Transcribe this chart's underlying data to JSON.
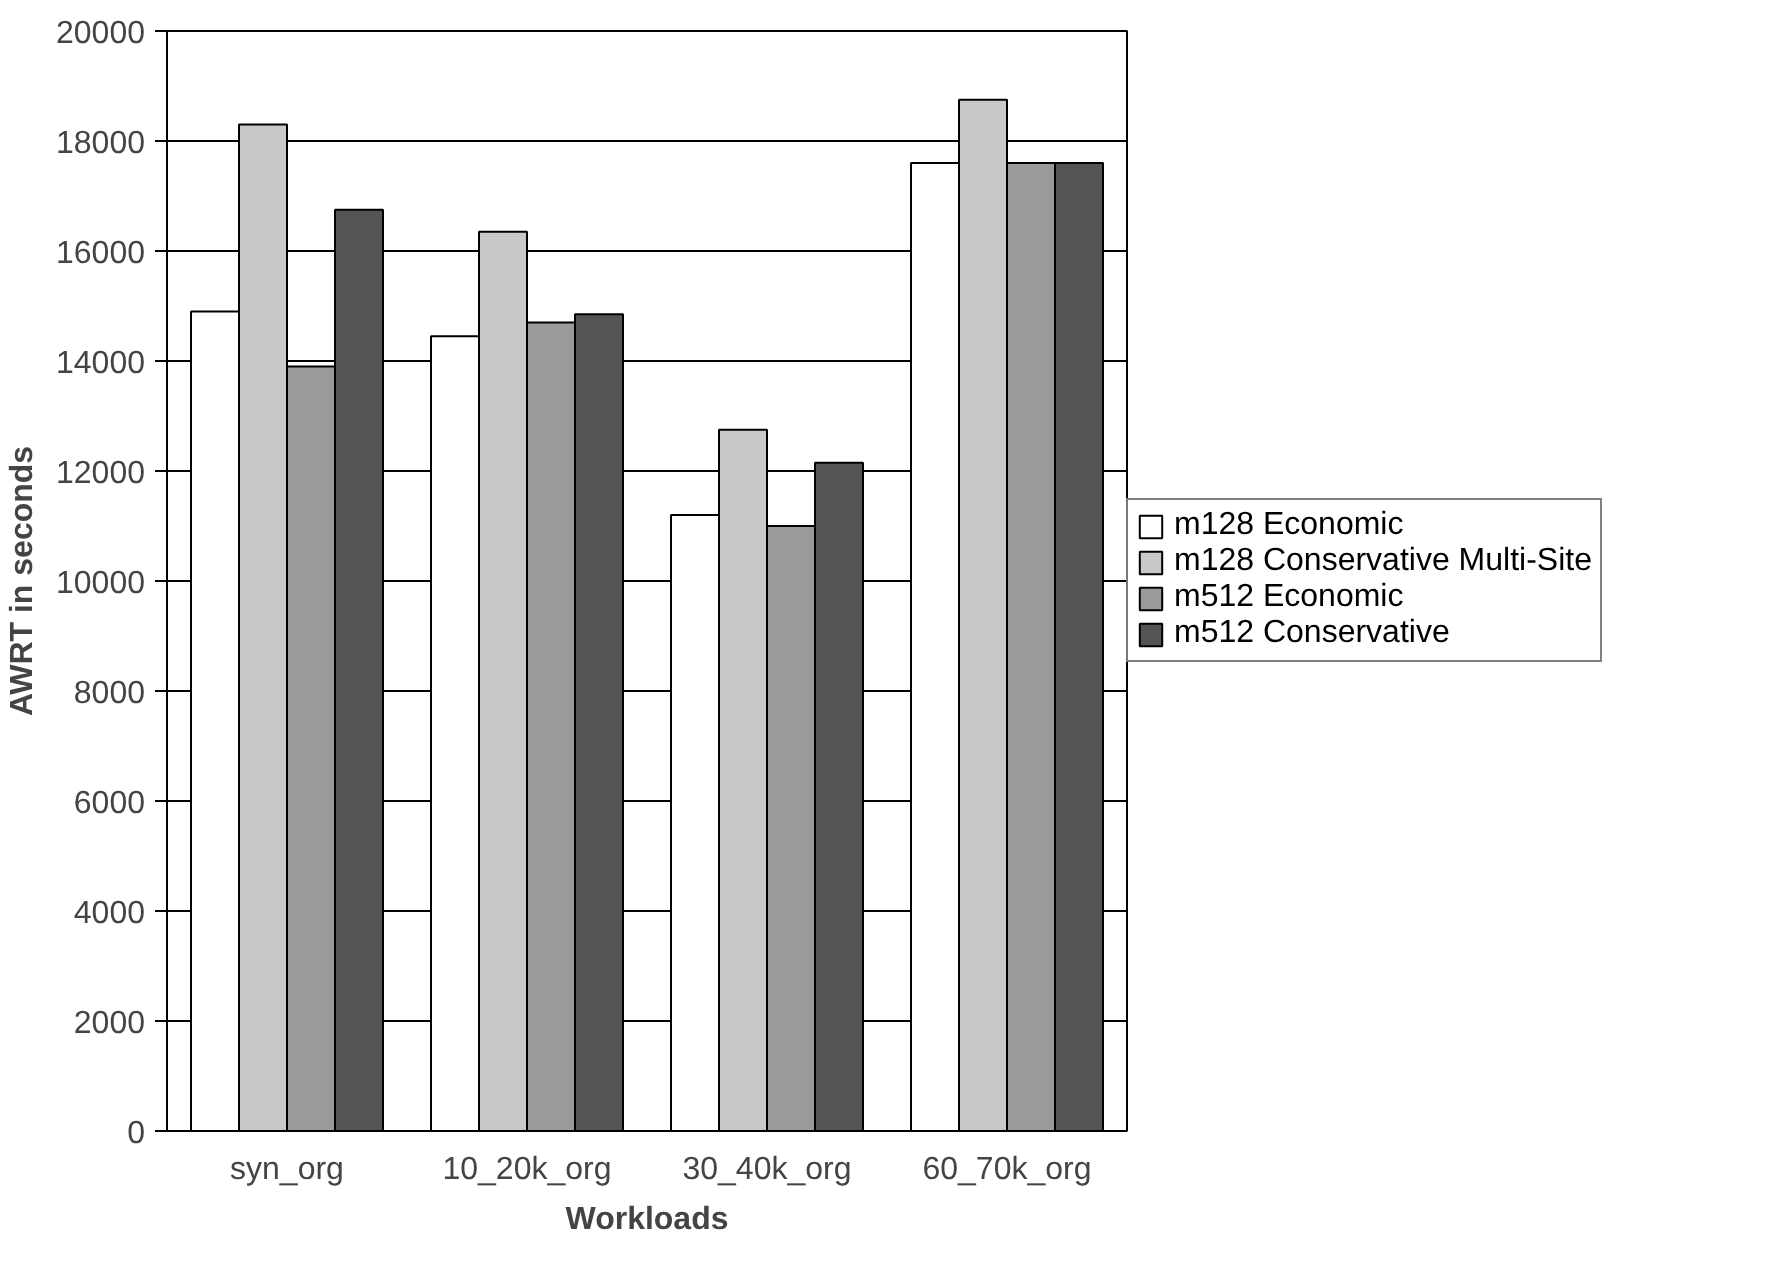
{
  "chart_data": {
    "type": "bar",
    "xlabel": "Workloads",
    "ylabel": "AWRT in seconds",
    "categories": [
      "syn_org",
      "10_20k_org",
      "30_40k_org",
      "60_70k_org"
    ],
    "series": [
      {
        "name": "m128 Economic",
        "color": "#ffffff",
        "values": [
          14900,
          14450,
          11200,
          17600
        ]
      },
      {
        "name": "m128 Conservative Multi-Site",
        "color": "#c8c8c8",
        "values": [
          18300,
          16350,
          12750,
          18750
        ]
      },
      {
        "name": "m512 Economic",
        "color": "#9a9a9a",
        "values": [
          13900,
          14700,
          11000,
          17600
        ]
      },
      {
        "name": "m512 Conservative",
        "color": "#555555",
        "values": [
          16750,
          14850,
          12150,
          17600
        ]
      }
    ],
    "ylim": [
      0,
      20000
    ],
    "yticks": [
      0,
      2000,
      4000,
      6000,
      8000,
      10000,
      12000,
      14000,
      16000,
      18000,
      20000
    ],
    "grid": "y",
    "legend": "right"
  }
}
